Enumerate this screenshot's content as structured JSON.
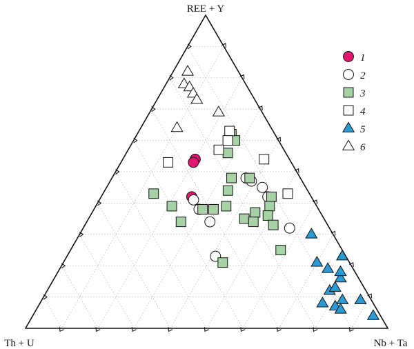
{
  "chart_data": {
    "type": "scatter",
    "subtype": "ternary",
    "vertices": {
      "top": "REE + Y",
      "left": "Th + U",
      "right": "Nb + Ta"
    },
    "grid": true,
    "grid_step": 0.1,
    "legend_position": "top-right",
    "legend": [
      {
        "label": "1",
        "marker": "circle",
        "fill": "#e0166f"
      },
      {
        "label": "2",
        "marker": "circle",
        "fill": "#ffffff"
      },
      {
        "label": "3",
        "marker": "square",
        "fill": "#a6d2a6"
      },
      {
        "label": "4",
        "marker": "square",
        "fill": "#ffffff"
      },
      {
        "label": "5",
        "marker": "triangle",
        "fill": "#2b9bd6"
      },
      {
        "label": "6",
        "marker": "triangle",
        "fill": "#ffffff"
      }
    ],
    "series": [
      {
        "legend_index": 0,
        "points": [
          {
            "ree_y": 0.54,
            "th_u": 0.26,
            "nb_ta": 0.2
          },
          {
            "ree_y": 0.53,
            "th_u": 0.27,
            "nb_ta": 0.2
          },
          {
            "ree_y": 0.42,
            "th_u": 0.33,
            "nb_ta": 0.25
          }
        ]
      },
      {
        "legend_index": 1,
        "points": [
          {
            "ree_y": 0.41,
            "th_u": 0.33,
            "nb_ta": 0.26
          },
          {
            "ree_y": 0.38,
            "th_u": 0.33,
            "nb_ta": 0.29
          },
          {
            "ree_y": 0.34,
            "th_u": 0.32,
            "nb_ta": 0.34
          },
          {
            "ree_y": 0.23,
            "th_u": 0.36,
            "nb_ta": 0.41
          },
          {
            "ree_y": 0.48,
            "th_u": 0.15,
            "nb_ta": 0.37
          },
          {
            "ree_y": 0.47,
            "th_u": 0.14,
            "nb_ta": 0.39
          },
          {
            "ree_y": 0.45,
            "th_u": 0.12,
            "nb_ta": 0.43
          },
          {
            "ree_y": 0.42,
            "th_u": 0.12,
            "nb_ta": 0.46
          },
          {
            "ree_y": 0.32,
            "th_u": 0.11,
            "nb_ta": 0.57
          }
        ]
      },
      {
        "legend_index": 2,
        "points": [
          {
            "ree_y": 0.62,
            "th_u": 0.12,
            "nb_ta": 0.26
          },
          {
            "ree_y": 0.6,
            "th_u": 0.12,
            "nb_ta": 0.28
          },
          {
            "ree_y": 0.56,
            "th_u": 0.16,
            "nb_ta": 0.28
          },
          {
            "ree_y": 0.48,
            "th_u": 0.19,
            "nb_ta": 0.33
          },
          {
            "ree_y": 0.48,
            "th_u": 0.14,
            "nb_ta": 0.38
          },
          {
            "ree_y": 0.43,
            "th_u": 0.43,
            "nb_ta": 0.14
          },
          {
            "ree_y": 0.38,
            "th_u": 0.32,
            "nb_ta": 0.3
          },
          {
            "ree_y": 0.38,
            "th_u": 0.29,
            "nb_ta": 0.33
          },
          {
            "ree_y": 0.39,
            "th_u": 0.25,
            "nb_ta": 0.36
          },
          {
            "ree_y": 0.44,
            "th_u": 0.22,
            "nb_ta": 0.34
          },
          {
            "ree_y": 0.35,
            "th_u": 0.22,
            "nb_ta": 0.43
          },
          {
            "ree_y": 0.37,
            "th_u": 0.18,
            "nb_ta": 0.45
          },
          {
            "ree_y": 0.42,
            "th_u": 0.11,
            "nb_ta": 0.47
          },
          {
            "ree_y": 0.39,
            "th_u": 0.13,
            "nb_ta": 0.48
          },
          {
            "ree_y": 0.39,
            "th_u": 0.4,
            "nb_ta": 0.21
          },
          {
            "ree_y": 0.34,
            "th_u": 0.4,
            "nb_ta": 0.26
          },
          {
            "ree_y": 0.36,
            "th_u": 0.15,
            "nb_ta": 0.49
          },
          {
            "ree_y": 0.33,
            "th_u": 0.15,
            "nb_ta": 0.52
          },
          {
            "ree_y": 0.21,
            "th_u": 0.35,
            "nb_ta": 0.44
          },
          {
            "ree_y": 0.34,
            "th_u": 0.2,
            "nb_ta": 0.46
          },
          {
            "ree_y": 0.25,
            "th_u": 0.17,
            "nb_ta": 0.58
          }
        ]
      },
      {
        "legend_index": 3,
        "points": [
          {
            "ree_y": 0.63,
            "th_u": 0.12,
            "nb_ta": 0.25
          },
          {
            "ree_y": 0.6,
            "th_u": 0.14,
            "nb_ta": 0.26
          },
          {
            "ree_y": 0.57,
            "th_u": 0.18,
            "nb_ta": 0.25
          },
          {
            "ree_y": 0.53,
            "th_u": 0.34,
            "nb_ta": 0.13
          },
          {
            "ree_y": 0.54,
            "th_u": 0.07,
            "nb_ta": 0.39
          },
          {
            "ree_y": 0.43,
            "th_u": 0.06,
            "nb_ta": 0.51
          }
        ]
      },
      {
        "legend_index": 4,
        "points": [
          {
            "ree_y": 0.3,
            "th_u": 0.06,
            "nb_ta": 0.64
          },
          {
            "ree_y": 0.21,
            "th_u": 0.09,
            "nb_ta": 0.7
          },
          {
            "ree_y": 0.19,
            "th_u": 0.07,
            "nb_ta": 0.74
          },
          {
            "ree_y": 0.23,
            "th_u": 0.01,
            "nb_ta": 0.76
          },
          {
            "ree_y": 0.16,
            "th_u": 0.05,
            "nb_ta": 0.79
          },
          {
            "ree_y": 0.12,
            "th_u": 0.1,
            "nb_ta": 0.78
          },
          {
            "ree_y": 0.18,
            "th_u": 0.04,
            "nb_ta": 0.78
          },
          {
            "ree_y": 0.13,
            "th_u": 0.08,
            "nb_ta": 0.79
          },
          {
            "ree_y": 0.08,
            "th_u": 0.14,
            "nb_ta": 0.78
          },
          {
            "ree_y": 0.09,
            "th_u": 0.08,
            "nb_ta": 0.83
          },
          {
            "ree_y": 0.07,
            "th_u": 0.11,
            "nb_ta": 0.82
          },
          {
            "ree_y": 0.09,
            "th_u": 0.03,
            "nb_ta": 0.88
          },
          {
            "ree_y": 0.06,
            "th_u": 0.1,
            "nb_ta": 0.84
          },
          {
            "ree_y": 0.04,
            "th_u": 0.02,
            "nb_ta": 0.94
          }
        ]
      },
      {
        "legend_index": 5,
        "points": [
          {
            "ree_y": 0.82,
            "th_u": 0.14,
            "nb_ta": 0.04
          },
          {
            "ree_y": 0.78,
            "th_u": 0.17,
            "nb_ta": 0.05
          },
          {
            "ree_y": 0.77,
            "th_u": 0.16,
            "nb_ta": 0.07
          },
          {
            "ree_y": 0.75,
            "th_u": 0.16,
            "nb_ta": 0.09
          },
          {
            "ree_y": 0.73,
            "th_u": 0.16,
            "nb_ta": 0.11
          },
          {
            "ree_y": 0.69,
            "th_u": 0.12,
            "nb_ta": 0.19
          },
          {
            "ree_y": 0.64,
            "th_u": 0.26,
            "nb_ta": 0.1
          }
        ]
      }
    ]
  }
}
